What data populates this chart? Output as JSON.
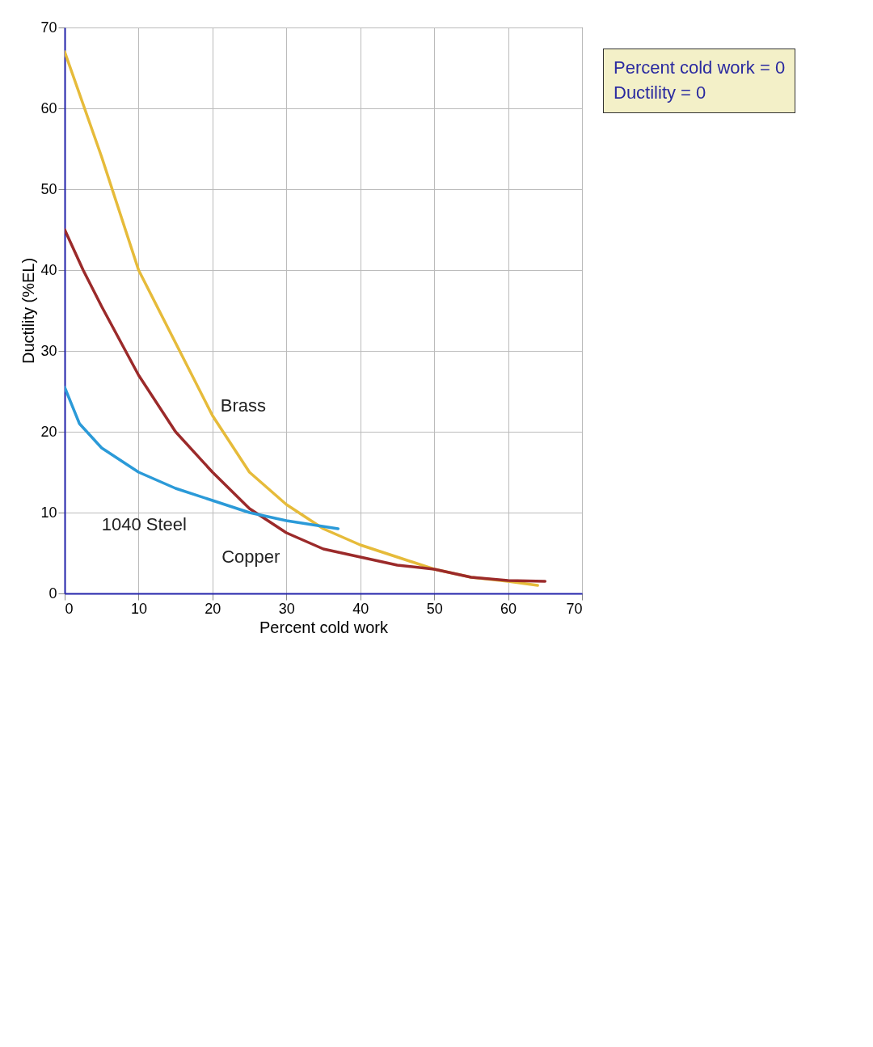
{
  "chart_data": {
    "type": "line",
    "xlabel": "Percent cold work",
    "ylabel": "Ductility (%EL)",
    "xlim": [
      0,
      70
    ],
    "ylim": [
      0,
      70
    ],
    "xticks": [
      0,
      10,
      20,
      30,
      40,
      50,
      60,
      70
    ],
    "yticks": [
      0,
      10,
      20,
      30,
      40,
      50,
      60,
      70
    ],
    "grid": true,
    "legend": false,
    "series": [
      {
        "name": "Brass",
        "color": "#e6bb3a",
        "x": [
          0,
          5,
          10,
          15,
          20,
          25,
          30,
          35,
          40,
          45,
          50,
          55,
          60,
          64
        ],
        "values": [
          67,
          54,
          40,
          31,
          22,
          15,
          11,
          8,
          6,
          4.5,
          3,
          2,
          1.5,
          1
        ]
      },
      {
        "name": "Copper",
        "color": "#9b2a2a",
        "x": [
          0,
          2.5,
          5,
          10,
          15,
          20,
          25,
          30,
          35,
          40,
          45,
          50,
          55,
          60,
          65
        ],
        "values": [
          45,
          40,
          35.5,
          27,
          20,
          15,
          10.5,
          7.5,
          5.5,
          4.5,
          3.5,
          3,
          2,
          1.6,
          1.5
        ]
      },
      {
        "name": "1040 Steel",
        "color": "#2b9ad8",
        "x": [
          0,
          2,
          5,
          10,
          15,
          20,
          25,
          30,
          37
        ],
        "values": [
          25.5,
          21,
          18,
          15,
          13,
          11.5,
          10,
          9,
          8
        ]
      }
    ],
    "annotations": [
      "Percent cold work = 0",
      "Ductility = 0"
    ]
  }
}
